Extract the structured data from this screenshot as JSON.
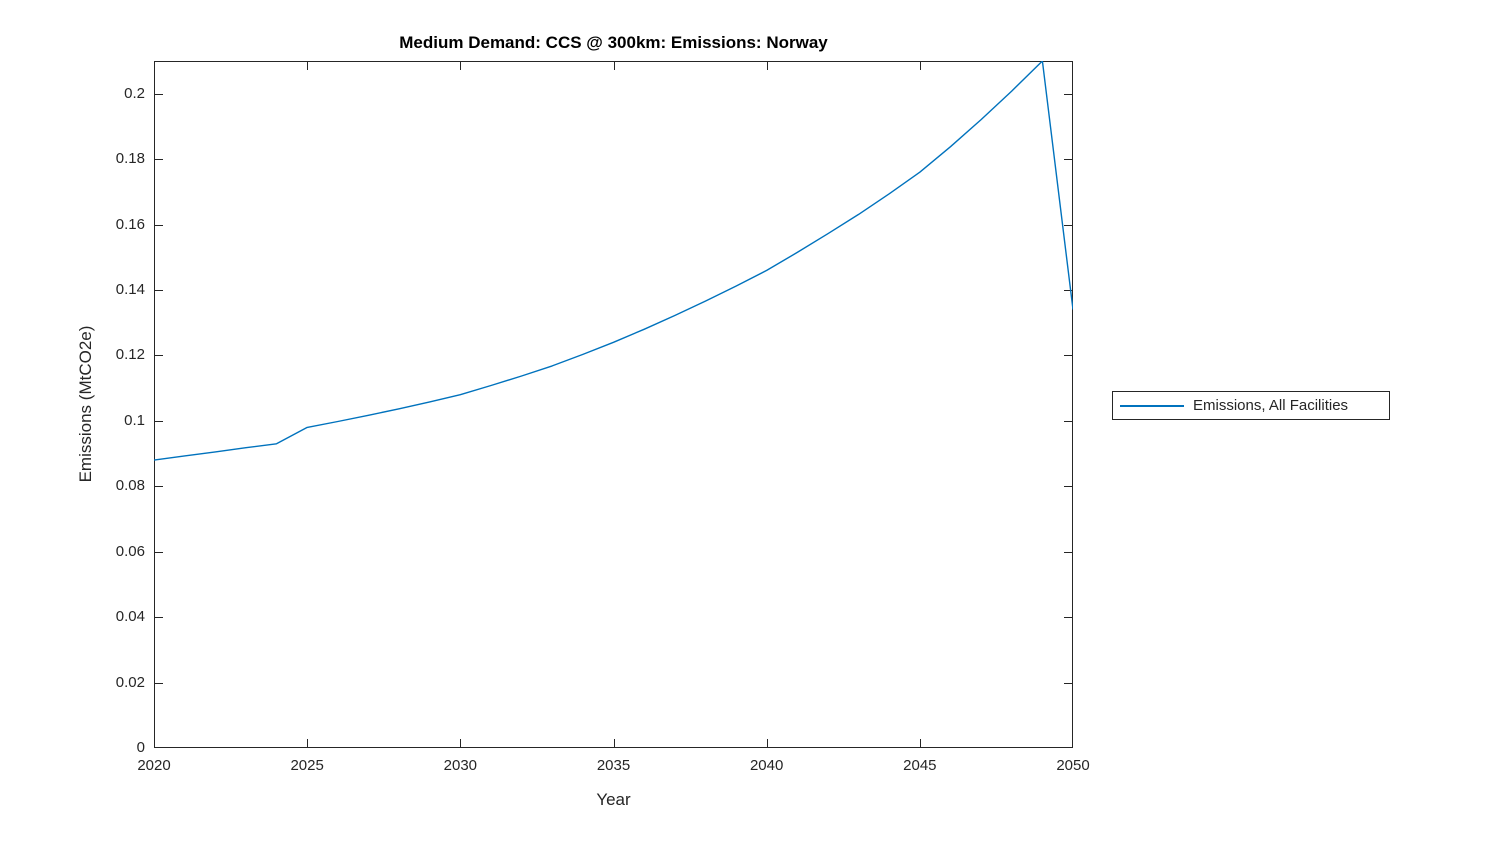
{
  "figure": {
    "background_color": "#ffffff",
    "axis_color": "#262626",
    "tick_label_color": "#262626",
    "title_color": "#000000"
  },
  "legend": {
    "position": "right-outside-middle",
    "border_color": "#262626",
    "entries": [
      {
        "label": "Emissions, All Facilities",
        "color": "#0072BD",
        "line_style": "solid"
      }
    ]
  },
  "chart_data": {
    "type": "line",
    "title": "Medium Demand: CCS @ 300km: Emissions: Norway",
    "xlabel": "Year",
    "ylabel": "Emissions (MtCO2e)",
    "xlim": [
      2020,
      2050
    ],
    "ylim": [
      0,
      0.21
    ],
    "xticks": [
      2020,
      2025,
      2030,
      2035,
      2040,
      2045,
      2050
    ],
    "xtick_labels": [
      "2020",
      "2025",
      "2030",
      "2035",
      "2040",
      "2045",
      "2050"
    ],
    "yticks": [
      0,
      0.02,
      0.04,
      0.06,
      0.08,
      0.1,
      0.12,
      0.14,
      0.16,
      0.18,
      0.2
    ],
    "ytick_labels": [
      "0",
      "0.02",
      "0.04",
      "0.06",
      "0.08",
      "0.1",
      "0.12",
      "0.14",
      "0.16",
      "0.18",
      "0.2"
    ],
    "grid": false,
    "box": true,
    "tick_direction": "in",
    "legend_position": "eastoutside",
    "series": [
      {
        "name": "Emissions, All Facilities",
        "color": "#0072BD",
        "x": [
          2020,
          2021,
          2022,
          2023,
          2024,
          2025,
          2026,
          2027,
          2028,
          2029,
          2030,
          2031,
          2032,
          2033,
          2034,
          2035,
          2036,
          2037,
          2038,
          2039,
          2040,
          2041,
          2042,
          2043,
          2044,
          2045,
          2046,
          2047,
          2048,
          2049,
          2050
        ],
        "values": [
          0.088,
          0.0893,
          0.0905,
          0.0918,
          0.093,
          0.098,
          0.0998,
          0.1017,
          0.1037,
          0.1058,
          0.108,
          0.1108,
          0.1137,
          0.1168,
          0.1203,
          0.124,
          0.128,
          0.1322,
          0.1366,
          0.1412,
          0.146,
          0.1515,
          0.1572,
          0.1631,
          0.1694,
          0.176,
          0.1838,
          0.1921,
          0.2008,
          0.21,
          0.134
        ]
      }
    ]
  }
}
